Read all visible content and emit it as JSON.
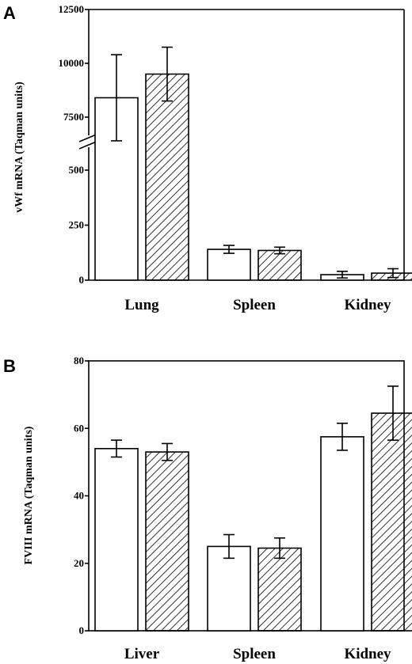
{
  "chart_data": [
    {
      "type": "bar",
      "panel_label": "A",
      "ylabel": "vWf mRNA (Taqman units)",
      "categories": [
        "Lung",
        "Spleen",
        "Kidney"
      ],
      "axis_break": true,
      "yticks_lower": [
        "0",
        "250",
        "500"
      ],
      "yticks_upper": [
        "7500",
        "10000",
        "12500"
      ],
      "ylim_lower": [
        0,
        600
      ],
      "ylim_upper": [
        6200,
        12500
      ],
      "series": [
        {
          "values": [
            8400,
            140,
            25
          ],
          "errors": [
            2000,
            18,
            15
          ],
          "fill": "open"
        },
        {
          "values": [
            9500,
            135,
            32
          ],
          "errors": [
            1250,
            15,
            20
          ],
          "fill": "hatched"
        }
      ]
    },
    {
      "type": "bar",
      "panel_label": "B",
      "ylabel": "FVIII mRNA (Taqman units)",
      "categories": [
        "Liver",
        "Spleen",
        "Kidney"
      ],
      "yticks": [
        "0",
        "20",
        "40",
        "60",
        "80"
      ],
      "ylim": [
        0,
        80
      ],
      "series": [
        {
          "values": [
            54,
            25,
            57.5
          ],
          "errors": [
            2.5,
            3.5,
            4
          ],
          "fill": "open"
        },
        {
          "values": [
            53,
            24.5,
            64.5
          ],
          "errors": [
            2.5,
            3,
            8
          ],
          "fill": "hatched"
        }
      ]
    }
  ]
}
